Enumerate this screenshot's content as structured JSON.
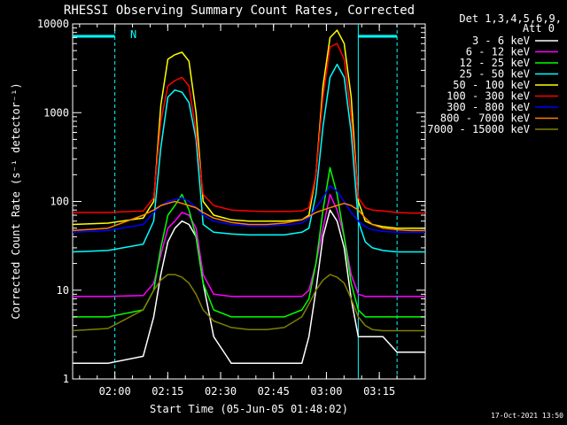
{
  "chart_data": {
    "type": "line",
    "title": "RHESSI Observing Summary Count Rates, Corrected",
    "xlabel": "Start Time (05-Jun-05 01:48:02)",
    "ylabel": "Corrected Count Rate (s⁻¹ detector⁻¹)",
    "x_unit": "minutes after 01:48:02",
    "xlim": [
      0,
      100
    ],
    "x_ticks": [
      {
        "label": "02:00",
        "value": 11.97
      },
      {
        "label": "02:15",
        "value": 26.97
      },
      {
        "label": "02:30",
        "value": 41.97
      },
      {
        "label": "02:45",
        "value": 56.97
      },
      {
        "label": "03:00",
        "value": 71.97
      },
      {
        "label": "03:15",
        "value": 86.97
      }
    ],
    "y_scale": "log",
    "ylim": [
      1,
      10000
    ],
    "y_ticks": [
      {
        "label": "1",
        "value": 1
      },
      {
        "label": "10",
        "value": 10
      },
      {
        "label": "100",
        "value": 100
      },
      {
        "label": "1000",
        "value": 1000
      },
      {
        "label": "10000",
        "value": 10000
      }
    ],
    "legend_header": [
      "Det 1,3,4,5,6,9,",
      "Att 0"
    ],
    "legend_position": "right",
    "series": [
      {
        "name": "3 - 6 keV",
        "color": "#ffffff",
        "x": [
          0,
          10,
          20,
          23,
          25,
          27,
          29,
          31,
          33,
          35,
          37,
          40,
          45,
          50,
          55,
          60,
          65,
          67,
          69,
          71,
          73,
          75,
          77,
          79,
          81,
          83,
          85,
          88,
          92,
          96,
          100
        ],
        "y": [
          1.5,
          1.5,
          1.8,
          5,
          15,
          35,
          50,
          60,
          55,
          40,
          12,
          3,
          1.5,
          1.5,
          1.5,
          1.5,
          1.5,
          3,
          10,
          40,
          80,
          60,
          30,
          8,
          3,
          3,
          3,
          3,
          2,
          2,
          2
        ]
      },
      {
        "name": "6 - 12 keV",
        "color": "#ff00ff",
        "x": [
          0,
          10,
          20,
          23,
          25,
          27,
          29,
          31,
          33,
          35,
          37,
          40,
          45,
          50,
          55,
          60,
          65,
          67,
          69,
          71,
          73,
          75,
          77,
          79,
          81,
          83,
          85,
          88,
          92,
          96,
          100
        ],
        "y": [
          8.5,
          8.5,
          8.7,
          12,
          25,
          50,
          60,
          75,
          70,
          50,
          15,
          9,
          8.5,
          8.5,
          8.5,
          8.5,
          8.5,
          10,
          20,
          50,
          120,
          80,
          40,
          15,
          9,
          8.5,
          8.5,
          8.5,
          8.5,
          8.5,
          8.5
        ]
      },
      {
        "name": "12 - 25 keV",
        "color": "#00ff00",
        "x": [
          0,
          10,
          20,
          23,
          25,
          27,
          29,
          31,
          33,
          35,
          37,
          40,
          45,
          50,
          55,
          60,
          65,
          67,
          69,
          71,
          73,
          75,
          77,
          79,
          81,
          83,
          85,
          88,
          92,
          96,
          100
        ],
        "y": [
          5,
          5,
          6,
          10,
          30,
          70,
          90,
          120,
          80,
          40,
          12,
          6,
          5,
          5,
          5,
          5,
          6,
          8,
          20,
          80,
          240,
          120,
          40,
          12,
          6,
          5,
          5,
          5,
          5,
          5,
          5
        ]
      },
      {
        "name": "25 - 50 keV",
        "color": "#00ffff",
        "x": [
          0,
          10,
          20,
          23,
          25,
          27,
          29,
          31,
          33,
          35,
          37,
          40,
          45,
          50,
          55,
          60,
          65,
          67,
          69,
          71,
          73,
          75,
          77,
          79,
          81,
          83,
          85,
          88,
          92,
          96,
          100
        ],
        "y": [
          27,
          28,
          33,
          60,
          400,
          1500,
          1800,
          1700,
          1300,
          500,
          55,
          45,
          43,
          42,
          42,
          42,
          45,
          50,
          120,
          700,
          2500,
          3500,
          2500,
          600,
          60,
          35,
          30,
          28,
          27,
          27,
          27
        ]
      },
      {
        "name": "50 - 100 keV",
        "color": "#ffff00",
        "x": [
          0,
          10,
          20,
          23,
          25,
          27,
          29,
          31,
          33,
          35,
          37,
          40,
          45,
          50,
          55,
          60,
          65,
          67,
          69,
          71,
          73,
          75,
          77,
          79,
          81,
          83,
          85,
          88,
          92,
          96,
          100
        ],
        "y": [
          55,
          57,
          65,
          100,
          1200,
          4000,
          4500,
          4800,
          3800,
          1000,
          100,
          70,
          62,
          60,
          60,
          60,
          62,
          70,
          200,
          2000,
          7000,
          8500,
          6000,
          1500,
          100,
          60,
          55,
          52,
          50,
          50,
          50
        ]
      },
      {
        "name": "100 - 300 keV",
        "color": "#ff0000",
        "x": [
          0,
          10,
          20,
          23,
          25,
          27,
          29,
          31,
          33,
          35,
          37,
          40,
          45,
          50,
          55,
          60,
          65,
          67,
          69,
          71,
          73,
          75,
          77,
          79,
          81,
          83,
          85,
          88,
          92,
          96,
          100
        ],
        "y": [
          75,
          75,
          78,
          110,
          800,
          2000,
          2300,
          2500,
          2000,
          600,
          120,
          90,
          80,
          78,
          77,
          77,
          78,
          85,
          200,
          1500,
          5500,
          6000,
          4000,
          900,
          110,
          85,
          80,
          78,
          75,
          74,
          74
        ]
      },
      {
        "name": "300 - 800 keV",
        "color": "#0000ff",
        "x": [
          0,
          10,
          20,
          23,
          25,
          27,
          29,
          31,
          33,
          35,
          37,
          40,
          45,
          50,
          55,
          60,
          65,
          67,
          69,
          71,
          73,
          75,
          77,
          79,
          81,
          83,
          85,
          88,
          92,
          96,
          100
        ],
        "y": [
          45,
          47,
          55,
          75,
          90,
          100,
          105,
          110,
          100,
          85,
          70,
          60,
          55,
          53,
          53,
          54,
          57,
          65,
          85,
          110,
          150,
          130,
          100,
          75,
          60,
          52,
          48,
          46,
          45,
          45,
          45
        ]
      },
      {
        "name": "800 - 7000 keV",
        "color": "#ff8000",
        "x": [
          0,
          10,
          20,
          23,
          25,
          27,
          29,
          31,
          33,
          35,
          37,
          40,
          45,
          50,
          55,
          60,
          65,
          67,
          69,
          71,
          73,
          75,
          77,
          79,
          81,
          83,
          85,
          88,
          92,
          96,
          100
        ],
        "y": [
          47,
          50,
          70,
          80,
          90,
          95,
          100,
          95,
          90,
          85,
          75,
          65,
          58,
          55,
          55,
          57,
          62,
          68,
          75,
          80,
          85,
          90,
          95,
          90,
          80,
          65,
          55,
          50,
          48,
          47,
          47
        ]
      },
      {
        "name": "7000 - 15000 keV",
        "color": "#808000",
        "x": [
          0,
          10,
          20,
          23,
          25,
          27,
          29,
          31,
          33,
          35,
          37,
          40,
          45,
          50,
          55,
          60,
          65,
          67,
          69,
          71,
          73,
          75,
          77,
          79,
          81,
          83,
          85,
          88,
          92,
          96,
          100
        ],
        "y": [
          3.5,
          3.7,
          6,
          10,
          13,
          15,
          15,
          14,
          12,
          9,
          6,
          4.5,
          3.8,
          3.6,
          3.6,
          3.8,
          5,
          7,
          10,
          13,
          15,
          14,
          12,
          8,
          5,
          4,
          3.6,
          3.5,
          3.5,
          3.5,
          3.5
        ]
      }
    ],
    "annotations": [
      {
        "text": "N",
        "color": "#00ffff"
      }
    ],
    "attenuator_markers": [
      {
        "x": 11.97,
        "color": "#00ffff",
        "style": "dashed"
      },
      {
        "x": 81.0,
        "color": "#00ffff",
        "style": "solid"
      },
      {
        "x": 92.0,
        "color": "#00ffff",
        "style": "dashed"
      }
    ],
    "footer": "17-Oct-2021 13:50"
  }
}
